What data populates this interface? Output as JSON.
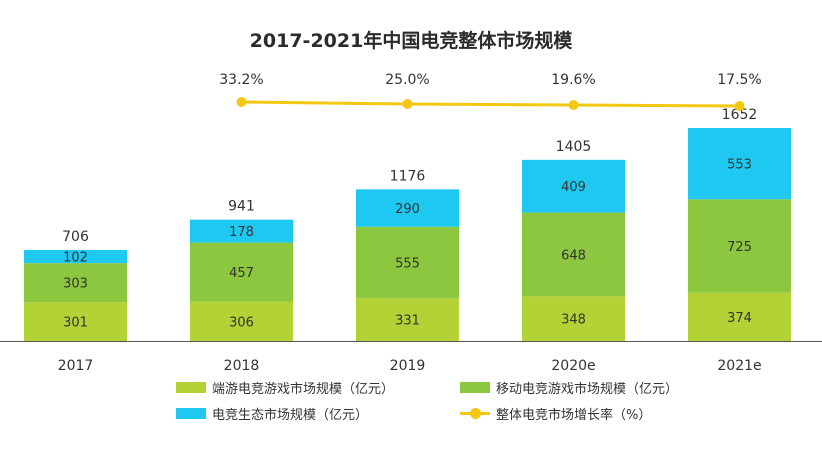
{
  "chart_data": {
    "type": "bar",
    "subtype": "stacked bar with line overlay",
    "title": "2017-2021年中国电竞整体市场规模",
    "categories": [
      "2017",
      "2018",
      "2019",
      "2020e",
      "2021e"
    ],
    "series": [
      {
        "name": "端游电竞游戏市场规模（亿元）",
        "values": [
          301,
          306,
          331,
          348,
          374
        ],
        "color": "#b2d235"
      },
      {
        "name": "移动电竞游戏市场规模（亿元）",
        "values": [
          303,
          457,
          555,
          648,
          725
        ],
        "color": "#8dc63f"
      },
      {
        "name": "电竞生态市场规模（亿元）",
        "values": [
          102,
          178,
          290,
          409,
          553
        ],
        "color": "#1ec8f0"
      }
    ],
    "totals": [
      706,
      941,
      1176,
      1405,
      1652
    ],
    "line": {
      "name": "整体电竞市场增长率（%）",
      "values": [
        null,
        33.2,
        25.0,
        19.6,
        17.5
      ],
      "labels": [
        "",
        "33.2%",
        "25.0%",
        "19.6%",
        "17.5%"
      ],
      "color": "#f3c813"
    },
    "ylim": [
      0,
      1652
    ],
    "grid": false,
    "legend_position": "bottom"
  }
}
